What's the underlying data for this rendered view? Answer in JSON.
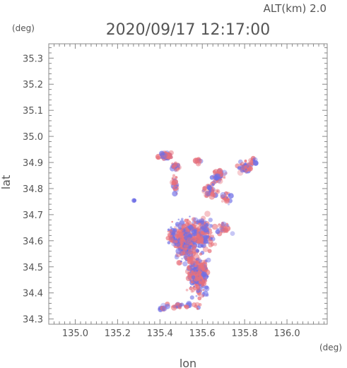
{
  "header": {
    "alt_label": "ALT(km)  2.0",
    "timestamp": "2020/09/17  12:17:00",
    "y_unit": "(deg)",
    "x_unit": "(deg)"
  },
  "chart_data": {
    "type": "scatter",
    "title": "2020/09/17  12:17:00",
    "xlabel": "lon",
    "ylabel": "lat",
    "xlim": [
      134.875,
      136.19
    ],
    "ylim": [
      34.28,
      35.355
    ],
    "xticks": [
      "135.0",
      "135.2",
      "135.4",
      "135.6",
      "135.8",
      "136.0"
    ],
    "yticks": [
      "34.3",
      "34.4",
      "34.5",
      "34.6",
      "34.7",
      "34.8",
      "34.9",
      "35.0",
      "35.1",
      "35.2",
      "35.3"
    ],
    "grid": false,
    "colors": {
      "positive": "#e8707a",
      "negative": "#6f6fe6"
    },
    "clusters": [
      {
        "lon": 135.425,
        "lat": 34.925,
        "slon": 0.025,
        "slat": 0.01,
        "n": 70
      },
      {
        "lon": 135.475,
        "lat": 34.885,
        "slon": 0.015,
        "slat": 0.01,
        "n": 20
      },
      {
        "lon": 135.58,
        "lat": 34.905,
        "slon": 0.01,
        "slat": 0.01,
        "n": 10
      },
      {
        "lon": 135.47,
        "lat": 34.82,
        "slon": 0.01,
        "slat": 0.03,
        "n": 25
      },
      {
        "lon": 135.68,
        "lat": 34.845,
        "slon": 0.025,
        "slat": 0.02,
        "n": 45
      },
      {
        "lon": 135.64,
        "lat": 34.79,
        "slon": 0.03,
        "slat": 0.02,
        "n": 35
      },
      {
        "lon": 135.71,
        "lat": 34.76,
        "slon": 0.02,
        "slat": 0.02,
        "n": 20
      },
      {
        "lon": 135.8,
        "lat": 34.88,
        "slon": 0.03,
        "slat": 0.015,
        "n": 45
      },
      {
        "lon": 135.84,
        "lat": 34.905,
        "slon": 0.012,
        "slat": 0.01,
        "n": 15
      },
      {
        "lon": 135.52,
        "lat": 34.6,
        "slon": 0.04,
        "slat": 0.06,
        "n": 260
      },
      {
        "lon": 135.6,
        "lat": 34.62,
        "slon": 0.04,
        "slat": 0.05,
        "n": 180
      },
      {
        "lon": 135.58,
        "lat": 34.47,
        "slon": 0.035,
        "slat": 0.06,
        "n": 260
      },
      {
        "lon": 135.46,
        "lat": 34.62,
        "slon": 0.02,
        "slat": 0.04,
        "n": 40
      },
      {
        "lon": 135.7,
        "lat": 34.65,
        "slon": 0.03,
        "slat": 0.02,
        "n": 25
      },
      {
        "lon": 135.5,
        "lat": 34.35,
        "slon": 0.07,
        "slat": 0.008,
        "n": 30
      },
      {
        "lon": 135.41,
        "lat": 34.34,
        "slon": 0.015,
        "slat": 0.006,
        "n": 12
      },
      {
        "lon": 135.28,
        "lat": 34.755,
        "slon": 0.004,
        "slat": 0.004,
        "n": 3
      }
    ]
  }
}
